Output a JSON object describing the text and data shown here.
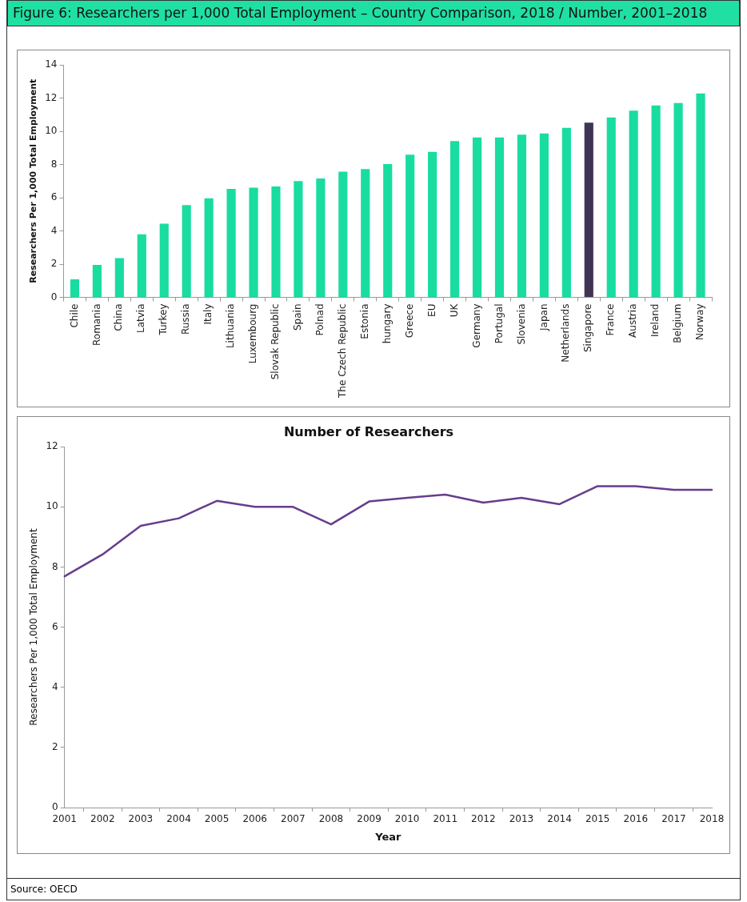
{
  "chart_data": [
    {
      "type": "bar",
      "title": "Figure 6: Researchers per 1,000 Total Employment – Country Comparison, 2018 / Number, 2001–2018",
      "ylabel": "Researchers Per 1,000 Total Employment",
      "categories": [
        "Chile",
        "Romania",
        "China",
        "Latvia",
        "Turkey",
        "Russia",
        "Italy",
        "Lithuania",
        "Luxembourg",
        "Slovak Republic",
        "Spain",
        "Polnad",
        "The Czech Republic",
        "Estonia",
        "hungary",
        "Greece",
        "EU",
        "UK",
        "Germany",
        "Portugal",
        "Slovenia",
        "Japan",
        "Netherlands",
        "Singapore",
        "France",
        "Austria",
        "Ireland",
        "Belgium",
        "Norway"
      ],
      "values": [
        1.08,
        1.95,
        2.36,
        3.8,
        4.43,
        5.55,
        5.96,
        6.53,
        6.6,
        6.68,
        7.0,
        7.16,
        7.57,
        7.72,
        8.03,
        8.59,
        8.76,
        9.41,
        9.63,
        9.63,
        9.8,
        9.87,
        10.2,
        10.52,
        10.83,
        11.24,
        11.56,
        11.7,
        12.28
      ],
      "colors": [
        "#19dca0",
        "#19dca0",
        "#19dca0",
        "#19dca0",
        "#19dca0",
        "#19dca0",
        "#19dca0",
        "#19dca0",
        "#19dca0",
        "#19dca0",
        "#19dca0",
        "#19dca0",
        "#19dca0",
        "#19dca0",
        "#19dca0",
        "#19dca0",
        "#19dca0",
        "#19dca0",
        "#19dca0",
        "#19dca0",
        "#19dca0",
        "#19dca0",
        "#19dca0",
        "#3f3553",
        "#19dca0",
        "#19dca0",
        "#19dca0",
        "#19dca0",
        "#19dca0"
      ],
      "ylim": [
        0,
        14
      ],
      "yticks": [
        0,
        2,
        4,
        6,
        8,
        10,
        12,
        14
      ],
      "grid": false,
      "legend": false
    },
    {
      "type": "line",
      "title": "Number of Researchers",
      "xlabel": "Year",
      "ylabel": "Researchers Per 1,000 Total Employment",
      "categories": [
        "2001",
        "2002",
        "2003",
        "2004",
        "2005",
        "2006",
        "2007",
        "2008",
        "2009",
        "2010",
        "2011",
        "2012",
        "2013",
        "2014",
        "2015",
        "2016",
        "2017",
        "2018"
      ],
      "series": [
        {
          "color": "#673d8c",
          "values": [
            7.69,
            8.42,
            9.37,
            9.62,
            10.2,
            10.0,
            10.0,
            9.42,
            10.18,
            10.3,
            10.41,
            10.14,
            10.3,
            10.09,
            10.69,
            10.69,
            10.57,
            10.57
          ]
        }
      ],
      "ylim": [
        0,
        12
      ],
      "yticks": [
        0,
        2,
        4,
        6,
        8,
        10,
        12
      ],
      "grid": false,
      "legend": false,
      "marker": "none",
      "line_style": "solid",
      "annotations": [
        "Source: OECD"
      ]
    }
  ]
}
